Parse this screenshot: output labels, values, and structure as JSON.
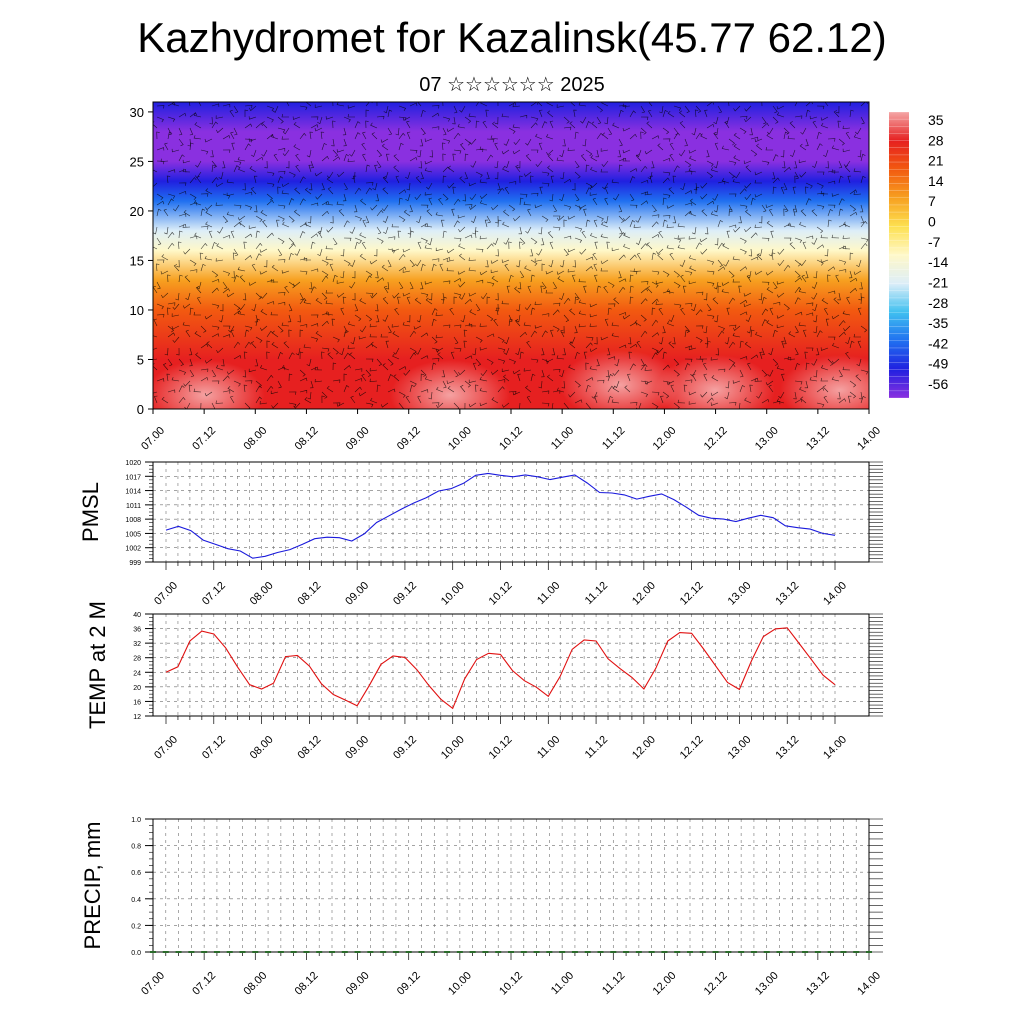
{
  "title": "Kazhydromet for Kazalinsk(45.77 62.12)",
  "subtitle": "07 ☆☆☆☆☆☆ 2025",
  "chart_data": [
    {
      "type": "heatmap",
      "title": "",
      "x_tick_labels": [
        "07.00",
        "07.12",
        "08.00",
        "08.12",
        "09.00",
        "09.12",
        "10.00",
        "10.12",
        "11.00",
        "11.12",
        "12.00",
        "12.12",
        "13.00",
        "13.12",
        "14.00"
      ],
      "y_ticks": [
        0,
        5,
        10,
        15,
        20,
        25,
        30
      ],
      "ylim": [
        0,
        31
      ],
      "colorbar_labels": [
        "35",
        "28",
        "21",
        "14",
        "7",
        "0",
        "-7",
        "-14",
        "-21",
        "-28",
        "-35",
        "-42",
        "-49",
        "-56"
      ],
      "colorbar_stops": [
        "#f4a6a6",
        "#e62020",
        "#f25a10",
        "#f7a020",
        "#fde050",
        "#fff8c8",
        "#ddeef8",
        "#40c0f0",
        "#2070f0",
        "#2020e0",
        "#8a30e0"
      ],
      "profile_celsius_by_level": [
        {
          "level": 0,
          "value": 30
        },
        {
          "level": 5,
          "value": 26
        },
        {
          "level": 10,
          "value": 18
        },
        {
          "level": 13,
          "value": 8
        },
        {
          "level": 16,
          "value": -8
        },
        {
          "level": 18,
          "value": -20
        },
        {
          "level": 21,
          "value": -38
        },
        {
          "level": 23,
          "value": -52
        },
        {
          "level": 25,
          "value": -58
        },
        {
          "level": 28,
          "value": -56
        },
        {
          "level": 31,
          "value": -55
        }
      ],
      "overlay": "wind barbs"
    },
    {
      "type": "line",
      "ylabel": "PMSL",
      "x_tick_labels": [
        "07.00",
        "07.12",
        "08.00",
        "08.12",
        "09.00",
        "09.12",
        "10.00",
        "10.12",
        "11.00",
        "11.12",
        "12.00",
        "12.12",
        "13.00",
        "13.12",
        "14.00"
      ],
      "y_ticks": [
        999,
        1002,
        1005,
        1008,
        1011,
        1014,
        1017,
        1020
      ],
      "ylim": [
        999,
        1020
      ],
      "color": "#1a1adc",
      "grid": true,
      "values": [
        1005.7,
        1006.5,
        1005.6,
        1003.6,
        1002.7,
        1001.8,
        1001.3,
        999.8,
        1000.2,
        1001.0,
        1001.6,
        1002.7,
        1003.9,
        1004.2,
        1004.1,
        1003.4,
        1004.9,
        1007.3,
        1008.7,
        1010.1,
        1011.4,
        1012.5,
        1013.9,
        1014.4,
        1015.5,
        1017.2,
        1017.6,
        1017.2,
        1016.9,
        1017.3,
        1016.9,
        1016.3,
        1016.8,
        1017.3,
        1015.6,
        1013.6,
        1013.5,
        1013.1,
        1012.2,
        1012.8,
        1013.3,
        1012.1,
        1010.5,
        1008.8,
        1008.2,
        1008.0,
        1007.5,
        1008.2,
        1008.8,
        1008.3,
        1006.6,
        1006.2,
        1005.9,
        1005.0,
        1004.6
      ]
    },
    {
      "type": "line",
      "ylabel": "TEMP at 2 M",
      "x_tick_labels": [
        "07.00",
        "07.12",
        "08.00",
        "08.12",
        "09.00",
        "09.12",
        "10.00",
        "10.12",
        "11.00",
        "11.12",
        "12.00",
        "12.12",
        "13.00",
        "13.12",
        "14.00"
      ],
      "y_ticks": [
        12,
        16,
        20,
        24,
        28,
        32,
        36,
        40
      ],
      "ylim": [
        12,
        40
      ],
      "color": "#e01010",
      "grid": true,
      "values": [
        24.0,
        25.5,
        32.6,
        35.3,
        34.5,
        30.7,
        25.4,
        20.6,
        19.4,
        21.0,
        28.3,
        28.6,
        25.7,
        20.9,
        17.9,
        16.4,
        14.8,
        20.3,
        26.2,
        28.5,
        28.1,
        24.7,
        20.4,
        16.6,
        14.1,
        22.2,
        27.5,
        29.2,
        28.9,
        24.5,
        21.7,
        19.9,
        17.4,
        22.9,
        30.3,
        32.9,
        32.6,
        27.7,
        25.0,
        22.6,
        19.4,
        25.1,
        32.6,
        34.9,
        34.7,
        30.4,
        25.8,
        21.2,
        19.3,
        27.1,
        33.8,
        35.9,
        36.2,
        31.9,
        27.6,
        23.2,
        20.6
      ]
    },
    {
      "type": "bar",
      "ylabel": "PRECIP, mm",
      "x_tick_labels": [
        "07.00",
        "07.12",
        "08.00",
        "08.12",
        "09.00",
        "09.12",
        "10.00",
        "10.12",
        "11.00",
        "11.12",
        "12.00",
        "12.12",
        "13.00",
        "13.12",
        "14.00"
      ],
      "y_ticks": [
        "0.0",
        "0.2",
        "0.4",
        "0.6",
        "0.8",
        "1.0"
      ],
      "ylim": [
        0,
        1
      ],
      "grid": true,
      "values": []
    }
  ]
}
